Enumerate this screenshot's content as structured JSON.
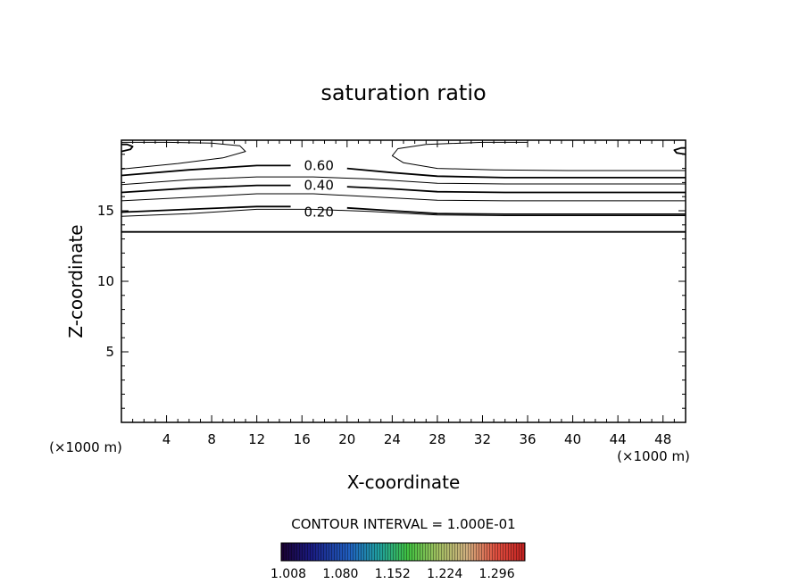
{
  "chart_data": {
    "type": "contour",
    "title": "saturation ratio",
    "xlabel": "X-coordinate",
    "ylabel": "Z-coordinate",
    "x_unit_label": "(×1000 m)",
    "y_unit_label": "(×1000 m)",
    "xlim": [
      0,
      50
    ],
    "ylim": [
      0,
      20
    ],
    "x_ticks": [
      4,
      8,
      12,
      16,
      20,
      24,
      28,
      32,
      36,
      40,
      44,
      48
    ],
    "y_ticks": [
      5,
      10,
      15
    ],
    "contour_interval_label": "CONTOUR INTERVAL = 1.000E-01",
    "colorbar_ticks": [
      "1.008",
      "1.080",
      "1.152",
      "1.224",
      "1.296"
    ],
    "contour_labels": [
      {
        "text": "0.60",
        "x": 17.5,
        "y": 18.2
      },
      {
        "text": "0.40",
        "x": 17.5,
        "y": 16.8
      },
      {
        "text": "0.20",
        "x": 17.5,
        "y": 14.9
      }
    ],
    "contours": [
      {
        "level": 0.0,
        "points": [
          [
            0,
            13.5
          ],
          [
            50,
            13.5
          ]
        ]
      },
      {
        "level": 0.1,
        "points": [
          [
            0,
            14.6
          ],
          [
            6,
            14.8
          ],
          [
            12,
            15.1
          ],
          [
            17,
            15.1
          ],
          [
            22,
            14.95
          ],
          [
            28,
            14.7
          ],
          [
            34,
            14.65
          ],
          [
            50,
            14.65
          ]
        ]
      },
      {
        "level": 0.2,
        "points": [
          [
            0,
            14.9
          ],
          [
            6,
            15.1
          ],
          [
            12,
            15.3
          ],
          [
            15,
            15.3
          ]
        ]
      },
      {
        "level": 0.2,
        "points": [
          [
            20,
            15.2
          ],
          [
            24,
            15.0
          ],
          [
            28,
            14.8
          ],
          [
            34,
            14.75
          ],
          [
            50,
            14.75
          ]
        ]
      },
      {
        "level": 0.3,
        "points": [
          [
            0,
            15.7
          ],
          [
            6,
            15.95
          ],
          [
            12,
            16.2
          ],
          [
            17,
            16.2
          ],
          [
            22,
            16.0
          ],
          [
            28,
            15.75
          ],
          [
            34,
            15.7
          ],
          [
            50,
            15.7
          ]
        ]
      },
      {
        "level": 0.4,
        "points": [
          [
            0,
            16.3
          ],
          [
            6,
            16.6
          ],
          [
            12,
            16.8
          ],
          [
            15,
            16.8
          ]
        ]
      },
      {
        "level": 0.4,
        "points": [
          [
            20,
            16.7
          ],
          [
            24,
            16.55
          ],
          [
            28,
            16.35
          ],
          [
            34,
            16.3
          ],
          [
            50,
            16.3
          ]
        ]
      },
      {
        "level": 0.5,
        "points": [
          [
            0,
            16.85
          ],
          [
            6,
            17.2
          ],
          [
            12,
            17.4
          ],
          [
            17,
            17.4
          ],
          [
            22,
            17.25
          ],
          [
            28,
            16.95
          ],
          [
            34,
            16.9
          ],
          [
            50,
            16.9
          ]
        ]
      },
      {
        "level": 0.6,
        "points": [
          [
            0,
            17.5
          ],
          [
            6,
            17.9
          ],
          [
            12,
            18.2
          ],
          [
            15,
            18.2
          ]
        ]
      },
      {
        "level": 0.6,
        "points": [
          [
            20,
            18.0
          ],
          [
            24,
            17.7
          ],
          [
            28,
            17.45
          ],
          [
            34,
            17.35
          ],
          [
            50,
            17.35
          ]
        ]
      },
      {
        "level": 0.7,
        "points": [
          [
            0,
            17.95
          ],
          [
            5,
            18.35
          ],
          [
            9,
            18.75
          ],
          [
            11,
            19.2
          ],
          [
            10.5,
            19.6
          ],
          [
            8,
            19.8
          ],
          [
            4,
            19.85
          ],
          [
            0,
            19.85
          ]
        ]
      },
      {
        "level": 0.7,
        "points": [
          [
            50,
            17.85
          ],
          [
            40,
            17.85
          ],
          [
            33,
            17.9
          ],
          [
            28,
            18.0
          ],
          [
            25,
            18.4
          ],
          [
            24,
            18.9
          ],
          [
            24.5,
            19.4
          ],
          [
            27,
            19.7
          ],
          [
            32,
            19.85
          ],
          [
            36,
            19.85
          ]
        ]
      },
      {
        "level": 0.8,
        "points": [
          [
            0,
            19.2
          ],
          [
            0.8,
            19.35
          ],
          [
            1,
            19.55
          ],
          [
            0.5,
            19.7
          ],
          [
            0,
            19.7
          ]
        ]
      },
      {
        "level": 0.8,
        "points": [
          [
            50,
            19.0
          ],
          [
            49.2,
            19.1
          ],
          [
            49,
            19.3
          ],
          [
            49.6,
            19.45
          ],
          [
            50,
            19.45
          ]
        ]
      }
    ]
  }
}
